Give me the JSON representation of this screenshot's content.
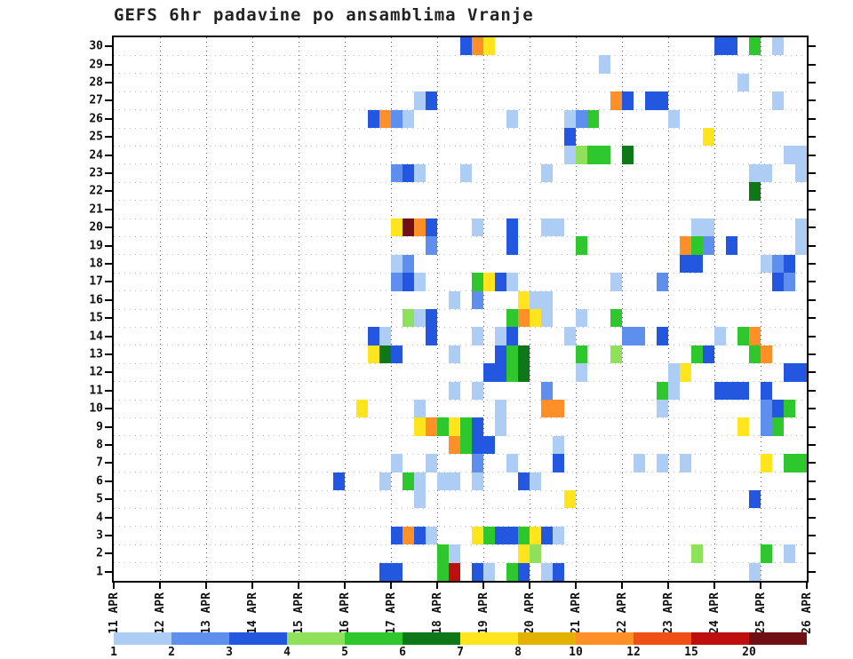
{
  "title": "GEFS 6hr padavine po ansamblima Vranje",
  "chart_data": {
    "type": "heatmap",
    "title": "GEFS 6hr padavine po ansamblima Vranje",
    "x_axis": {
      "day_labels": [
        "11 APR",
        "12 APR",
        "13 APR",
        "14 APR",
        "15 APR",
        "16 APR",
        "17 APR",
        "18 APR",
        "19 APR",
        "20 APR",
        "21 APR",
        "22 APR",
        "23 APR",
        "24 APR",
        "25 APR",
        "26 APR"
      ],
      "steps_per_day": 4,
      "step_hours": 6
    },
    "y_axis": {
      "tick_labels_top_to_bottom": [
        "30",
        "29",
        "28",
        "27",
        "26",
        "25",
        "24",
        "23",
        "22",
        "21",
        "20",
        "19",
        "18",
        "17",
        "16",
        "15",
        "14",
        "13",
        "12",
        "11",
        "10",
        "9",
        "8",
        "7",
        "6",
        "5",
        "4",
        "3",
        "2",
        "1"
      ],
      "members": 30
    },
    "legend": {
      "labels": [
        "1",
        "2",
        "3",
        "4",
        "5",
        "6",
        "7",
        "8",
        "10",
        "12",
        "15",
        "20"
      ],
      "colors": [
        "#AECDF4",
        "#5E8FEE",
        "#2457E0",
        "#8FE05A",
        "#2EC82E",
        "#0E7818",
        "#FFE41E",
        "#E3B200",
        "#FF9028",
        "#F05014",
        "#BE0E0E",
        "#701014"
      ],
      "level_ranges": [
        "1-2",
        "2-3",
        "3-4",
        "4-5",
        "5-6",
        "6-7",
        "7-8",
        "8-10",
        "10-12",
        "12-15",
        "15-20",
        ">20"
      ]
    },
    "cells_format": "[ensemble_member, six_hour_step_from_11APR00Z, color_level_1_to_12]",
    "cells": [
      [
        30,
        30,
        3
      ],
      [
        30,
        31,
        9
      ],
      [
        30,
        32,
        7
      ],
      [
        30,
        52,
        3
      ],
      [
        30,
        53,
        3
      ],
      [
        30,
        55,
        5
      ],
      [
        30,
        57,
        1
      ],
      [
        29,
        42,
        1
      ],
      [
        28,
        54,
        1
      ],
      [
        27,
        26,
        1
      ],
      [
        27,
        27,
        3
      ],
      [
        27,
        43,
        9
      ],
      [
        27,
        44,
        3
      ],
      [
        27,
        46,
        3
      ],
      [
        27,
        47,
        3
      ],
      [
        27,
        57,
        1
      ],
      [
        26,
        22,
        3
      ],
      [
        26,
        23,
        9
      ],
      [
        26,
        24,
        2
      ],
      [
        26,
        25,
        1
      ],
      [
        26,
        34,
        1
      ],
      [
        26,
        39,
        1
      ],
      [
        26,
        40,
        2
      ],
      [
        26,
        41,
        5
      ],
      [
        26,
        48,
        1
      ],
      [
        25,
        39,
        3
      ],
      [
        25,
        51,
        7
      ],
      [
        24,
        39,
        1
      ],
      [
        24,
        40,
        4
      ],
      [
        24,
        41,
        5
      ],
      [
        24,
        42,
        5
      ],
      [
        24,
        44,
        6
      ],
      [
        24,
        58,
        1
      ],
      [
        24,
        59,
        1
      ],
      [
        23,
        24,
        2
      ],
      [
        23,
        25,
        3
      ],
      [
        23,
        26,
        1
      ],
      [
        23,
        30,
        1
      ],
      [
        23,
        37,
        1
      ],
      [
        23,
        55,
        1
      ],
      [
        23,
        56,
        1
      ],
      [
        23,
        59,
        1
      ],
      [
        22,
        55,
        6
      ],
      [
        20,
        24,
        7
      ],
      [
        20,
        25,
        12
      ],
      [
        20,
        26,
        9
      ],
      [
        20,
        27,
        3
      ],
      [
        20,
        31,
        1
      ],
      [
        20,
        34,
        3
      ],
      [
        20,
        37,
        1
      ],
      [
        20,
        38,
        1
      ],
      [
        20,
        50,
        1
      ],
      [
        20,
        51,
        1
      ],
      [
        20,
        59,
        1
      ],
      [
        19,
        27,
        2
      ],
      [
        19,
        34,
        3
      ],
      [
        19,
        40,
        5
      ],
      [
        19,
        49,
        9
      ],
      [
        19,
        50,
        5
      ],
      [
        19,
        51,
        2
      ],
      [
        19,
        53,
        3
      ],
      [
        19,
        59,
        1
      ],
      [
        18,
        24,
        1
      ],
      [
        18,
        25,
        2
      ],
      [
        18,
        49,
        3
      ],
      [
        18,
        50,
        3
      ],
      [
        18,
        56,
        1
      ],
      [
        18,
        57,
        2
      ],
      [
        18,
        58,
        3
      ],
      [
        17,
        24,
        2
      ],
      [
        17,
        25,
        3
      ],
      [
        17,
        26,
        1
      ],
      [
        17,
        31,
        5
      ],
      [
        17,
        32,
        7
      ],
      [
        17,
        33,
        3
      ],
      [
        17,
        34,
        1
      ],
      [
        17,
        43,
        1
      ],
      [
        17,
        47,
        2
      ],
      [
        17,
        57,
        3
      ],
      [
        17,
        58,
        2
      ],
      [
        16,
        29,
        1
      ],
      [
        16,
        31,
        2
      ],
      [
        16,
        35,
        7
      ],
      [
        16,
        36,
        1
      ],
      [
        16,
        37,
        1
      ],
      [
        15,
        25,
        4
      ],
      [
        15,
        26,
        1
      ],
      [
        15,
        27,
        3
      ],
      [
        15,
        34,
        5
      ],
      [
        15,
        35,
        9
      ],
      [
        15,
        36,
        7
      ],
      [
        15,
        37,
        1
      ],
      [
        15,
        40,
        1
      ],
      [
        15,
        43,
        5
      ],
      [
        14,
        22,
        3
      ],
      [
        14,
        23,
        1
      ],
      [
        14,
        27,
        3
      ],
      [
        14,
        31,
        1
      ],
      [
        14,
        33,
        1
      ],
      [
        14,
        34,
        3
      ],
      [
        14,
        39,
        1
      ],
      [
        14,
        44,
        2
      ],
      [
        14,
        45,
        2
      ],
      [
        14,
        47,
        3
      ],
      [
        14,
        52,
        1
      ],
      [
        14,
        54,
        5
      ],
      [
        14,
        55,
        9
      ],
      [
        13,
        22,
        7
      ],
      [
        13,
        23,
        6
      ],
      [
        13,
        24,
        3
      ],
      [
        13,
        29,
        1
      ],
      [
        13,
        33,
        3
      ],
      [
        13,
        34,
        5
      ],
      [
        13,
        35,
        6
      ],
      [
        13,
        40,
        5
      ],
      [
        13,
        43,
        4
      ],
      [
        13,
        50,
        5
      ],
      [
        13,
        51,
        3
      ],
      [
        13,
        55,
        5
      ],
      [
        13,
        56,
        9
      ],
      [
        12,
        32,
        3
      ],
      [
        12,
        33,
        3
      ],
      [
        12,
        34,
        5
      ],
      [
        12,
        35,
        6
      ],
      [
        12,
        40,
        1
      ],
      [
        12,
        48,
        1
      ],
      [
        12,
        49,
        7
      ],
      [
        12,
        58,
        3
      ],
      [
        12,
        59,
        3
      ],
      [
        11,
        29,
        1
      ],
      [
        11,
        31,
        1
      ],
      [
        11,
        37,
        2
      ],
      [
        11,
        47,
        5
      ],
      [
        11,
        48,
        1
      ],
      [
        11,
        52,
        3
      ],
      [
        11,
        53,
        3
      ],
      [
        11,
        54,
        3
      ],
      [
        11,
        56,
        3
      ],
      [
        10,
        21,
        7
      ],
      [
        10,
        26,
        1
      ],
      [
        10,
        33,
        1
      ],
      [
        10,
        37,
        9
      ],
      [
        10,
        38,
        9
      ],
      [
        10,
        47,
        1
      ],
      [
        10,
        56,
        2
      ],
      [
        10,
        57,
        3
      ],
      [
        10,
        58,
        5
      ],
      [
        9,
        26,
        7
      ],
      [
        9,
        27,
        9
      ],
      [
        9,
        28,
        5
      ],
      [
        9,
        29,
        7
      ],
      [
        9,
        30,
        5
      ],
      [
        9,
        31,
        3
      ],
      [
        9,
        33,
        1
      ],
      [
        9,
        54,
        7
      ],
      [
        9,
        56,
        2
      ],
      [
        9,
        57,
        5
      ],
      [
        8,
        29,
        9
      ],
      [
        8,
        30,
        5
      ],
      [
        8,
        31,
        3
      ],
      [
        8,
        32,
        3
      ],
      [
        8,
        38,
        1
      ],
      [
        7,
        24,
        1
      ],
      [
        7,
        27,
        1
      ],
      [
        7,
        31,
        2
      ],
      [
        7,
        34,
        1
      ],
      [
        7,
        38,
        3
      ],
      [
        7,
        45,
        1
      ],
      [
        7,
        47,
        1
      ],
      [
        7,
        49,
        1
      ],
      [
        7,
        56,
        7
      ],
      [
        7,
        58,
        5
      ],
      [
        7,
        59,
        5
      ],
      [
        6,
        19,
        3
      ],
      [
        6,
        23,
        1
      ],
      [
        6,
        25,
        5
      ],
      [
        6,
        26,
        1
      ],
      [
        6,
        28,
        1
      ],
      [
        6,
        29,
        1
      ],
      [
        6,
        31,
        1
      ],
      [
        6,
        35,
        3
      ],
      [
        6,
        36,
        1
      ],
      [
        5,
        26,
        1
      ],
      [
        5,
        39,
        7
      ],
      [
        5,
        55,
        3
      ],
      [
        3,
        24,
        3
      ],
      [
        3,
        25,
        9
      ],
      [
        3,
        26,
        3
      ],
      [
        3,
        27,
        1
      ],
      [
        3,
        31,
        7
      ],
      [
        3,
        32,
        5
      ],
      [
        3,
        33,
        3
      ],
      [
        3,
        34,
        3
      ],
      [
        3,
        35,
        5
      ],
      [
        3,
        36,
        7
      ],
      [
        3,
        37,
        3
      ],
      [
        3,
        38,
        1
      ],
      [
        2,
        28,
        5
      ],
      [
        2,
        29,
        1
      ],
      [
        2,
        35,
        7
      ],
      [
        2,
        36,
        4
      ],
      [
        2,
        50,
        4
      ],
      [
        2,
        56,
        5
      ],
      [
        2,
        58,
        1
      ],
      [
        1,
        23,
        3
      ],
      [
        1,
        24,
        3
      ],
      [
        1,
        28,
        5
      ],
      [
        1,
        29,
        11
      ],
      [
        1,
        31,
        3
      ],
      [
        1,
        32,
        1
      ],
      [
        1,
        34,
        5
      ],
      [
        1,
        35,
        3
      ],
      [
        1,
        37,
        1
      ],
      [
        1,
        38,
        3
      ],
      [
        1,
        55,
        1
      ]
    ]
  }
}
